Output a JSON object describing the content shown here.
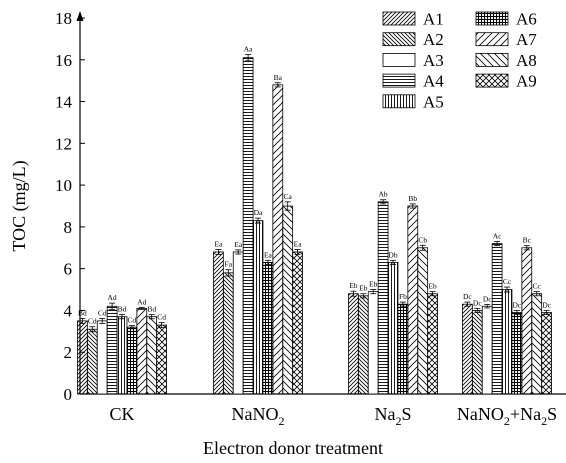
{
  "chart_data": {
    "type": "bar",
    "title": "",
    "xlabel": "Electron donor treatment",
    "ylabel": "TOC (mg/L)",
    "ylim": [
      0,
      18
    ],
    "y_ticks": [
      "0",
      "2",
      "4",
      "6",
      "8",
      "10",
      "12",
      "14",
      "16",
      "18"
    ],
    "grid": false,
    "legend_position": "top-right",
    "categories": [
      {
        "base": "CK"
      },
      {
        "base": "NaNO",
        "sub": "2"
      },
      {
        "base": "Na",
        "sub": "2",
        "tail": "S"
      },
      {
        "base": "NaNO",
        "sub": "2",
        "tail": "+Na",
        "sub2": "2",
        "tail2": "S"
      }
    ],
    "series": [
      {
        "name": "A1",
        "pattern": "diag-right",
        "values": [
          3.5,
          6.8,
          4.8,
          4.3
        ],
        "errors": [
          0.12,
          0.12,
          0.12,
          0.1
        ],
        "labels": [
          "Bd",
          "Ea",
          "Eb",
          "Dc"
        ]
      },
      {
        "name": "A2",
        "pattern": "diag-left",
        "values": [
          3.1,
          5.8,
          4.7,
          4.0
        ],
        "errors": [
          0.12,
          0.15,
          0.1,
          0.1
        ],
        "labels": [
          "Cd",
          "Fa",
          "Eb",
          "Dc"
        ]
      },
      {
        "name": "A3",
        "pattern": "blank",
        "values": [
          3.5,
          6.8,
          4.9,
          4.2
        ],
        "errors": [
          0.12,
          0.1,
          0.1,
          0.08
        ],
        "labels": [
          "Cd",
          "Ea",
          "Eb",
          "Dc"
        ]
      },
      {
        "name": "A4",
        "pattern": "horizontal",
        "values": [
          4.2,
          16.1,
          9.2,
          7.2
        ],
        "errors": [
          0.15,
          0.15,
          0.1,
          0.1
        ],
        "labels": [
          "Ad",
          "Aa",
          "Ab",
          "Ac"
        ]
      },
      {
        "name": "A5",
        "pattern": "vertical",
        "values": [
          3.7,
          8.3,
          6.3,
          5.0
        ],
        "errors": [
          0.1,
          0.12,
          0.1,
          0.12
        ],
        "labels": [
          "Bd",
          "Da",
          "Db",
          "Cc"
        ]
      },
      {
        "name": "A6",
        "pattern": "grid",
        "values": [
          3.2,
          6.3,
          4.3,
          3.9
        ],
        "errors": [
          0.08,
          0.1,
          0.1,
          0.1
        ],
        "labels": [
          "Cd",
          "Ea",
          "Fb",
          "Dc"
        ]
      },
      {
        "name": "A7",
        "pattern": "diag-right-sparse",
        "values": [
          4.1,
          14.8,
          9.0,
          7.0
        ],
        "errors": [
          0.05,
          0.1,
          0.1,
          0.1
        ],
        "labels": [
          "Ad",
          "Ba",
          "Bb",
          "Bc"
        ]
      },
      {
        "name": "A8",
        "pattern": "diag-left-sparse",
        "values": [
          3.7,
          9.0,
          7.0,
          4.8
        ],
        "errors": [
          0.1,
          0.2,
          0.12,
          0.1
        ],
        "labels": [
          "Bd",
          "Ca",
          "Cb",
          "Cc"
        ]
      },
      {
        "name": "A9",
        "pattern": "crosshatch",
        "values": [
          3.3,
          6.8,
          4.8,
          3.9
        ],
        "errors": [
          0.12,
          0.12,
          0.1,
          0.1
        ],
        "labels": [
          "Cd",
          "Ea",
          "Eb",
          "Dc"
        ]
      }
    ]
  }
}
